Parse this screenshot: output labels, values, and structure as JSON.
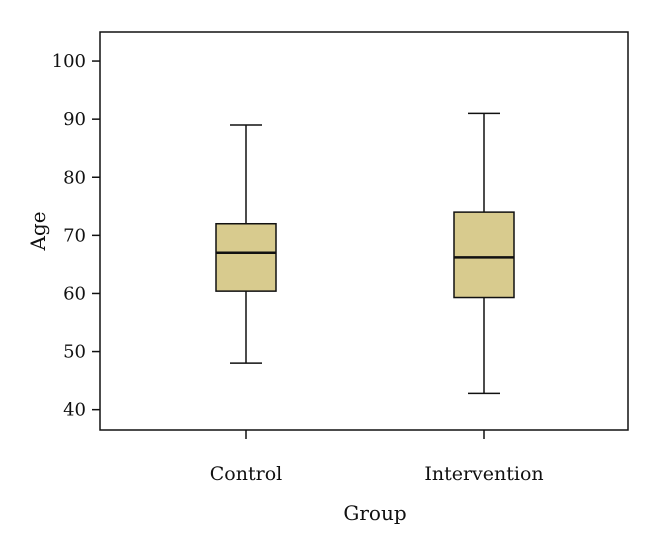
{
  "chart_data": {
    "type": "box",
    "xlabel": "Group",
    "ylabel": "Age",
    "ylim": [
      36.5,
      105
    ],
    "yticks": [
      40,
      50,
      60,
      70,
      80,
      90,
      100
    ],
    "categories": [
      "Control",
      "Intervention"
    ],
    "boxes": [
      {
        "category": "Control",
        "min": 48,
        "q1": 60.4,
        "median": 67,
        "q3": 72,
        "max": 89
      },
      {
        "category": "Intervention",
        "min": 42.8,
        "q1": 59.3,
        "median": 66.2,
        "q3": 74,
        "max": 91
      }
    ],
    "colors": {
      "box_fill": "#d8cb8e",
      "stroke": "#111111"
    },
    "grid": false
  }
}
